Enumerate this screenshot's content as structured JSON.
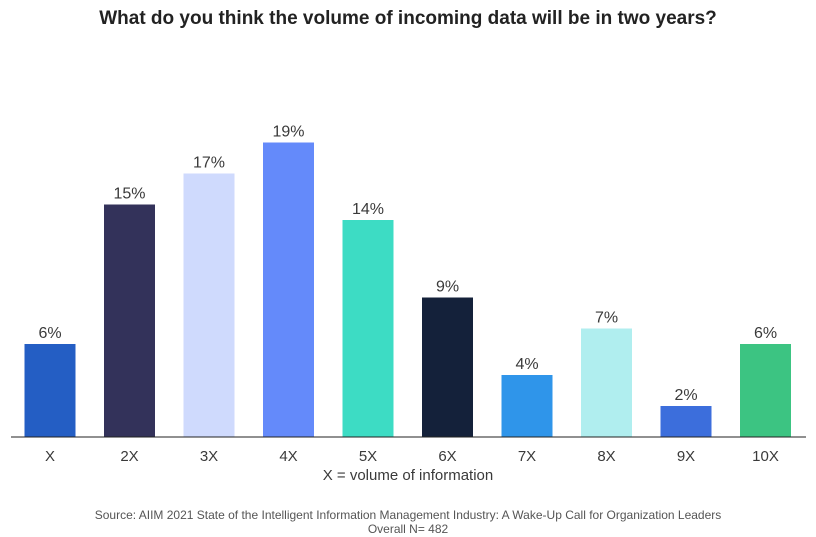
{
  "chart_data": {
    "type": "bar",
    "title": "What do you think the volume of incoming data will be in two years?",
    "xlabel": "X = volume of information",
    "ylabel": "",
    "categories": [
      "X",
      "2X",
      "3X",
      "4X",
      "5X",
      "6X",
      "7X",
      "8X",
      "9X",
      "10X"
    ],
    "values": [
      6,
      15,
      17,
      19,
      14,
      9,
      4,
      7,
      2,
      6
    ],
    "value_labels": [
      "6%",
      "15%",
      "17%",
      "19%",
      "14%",
      "9%",
      "4%",
      "7%",
      "2%",
      "6%"
    ],
    "colors": [
      "#245ec4",
      "#33325a",
      "#cfdafd",
      "#648afa",
      "#3ddcc4",
      "#14213a",
      "#2f95ea",
      "#b0eeef",
      "#3c6edc",
      "#3cc482"
    ],
    "ylim": [
      0,
      20
    ],
    "grid": false,
    "legend": "none"
  },
  "footer": {
    "source": "Source: AIIM 2021 State of the Intelligent Information Management Industry: A Wake-Up Call for Organization Leaders",
    "sample": "Overall N= 482"
  }
}
